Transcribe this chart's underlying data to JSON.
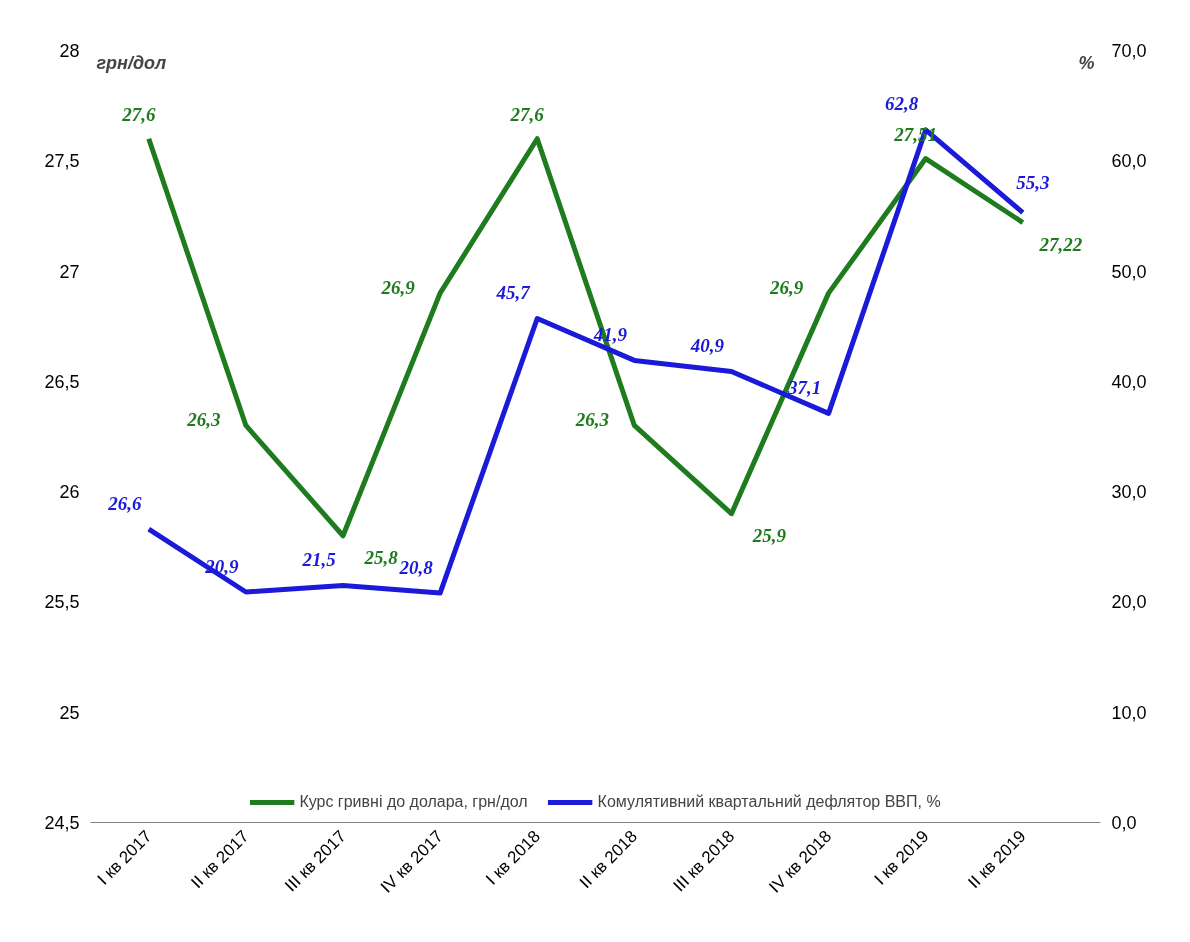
{
  "chart_data": {
    "type": "line",
    "ylabel": "грн/дол",
    "y2label": "%",
    "categories": [
      "I кв 2017",
      "II кв 2017",
      "III кв 2017",
      "IV кв 2017",
      "I кв 2018",
      "II кв 2018",
      "III кв 2018",
      "IV кв 2018",
      "I кв 2019",
      "II кв 2019"
    ],
    "series": [
      {
        "name": "Курс гривні до долара, грн/дол",
        "color": "#1e7b1e",
        "values": [
          27.6,
          26.3,
          25.8,
          26.9,
          27.6,
          26.3,
          25.9,
          26.9,
          27.51,
          27.22
        ],
        "value_labels": [
          "27,6",
          "26,3",
          "25,8",
          "26,9",
          "27,6",
          "26,3",
          "25,9",
          "26,9",
          "27,51",
          "27,22"
        ]
      },
      {
        "name": "Комулятивний квартальний дефлятор ВВП, %",
        "color": "#1a1ad8",
        "axis": "y2",
        "values": [
          26.6,
          20.9,
          21.5,
          20.8,
          45.7,
          41.9,
          40.9,
          37.1,
          62.8,
          55.3
        ],
        "value_labels": [
          "26,6",
          "20,9",
          "21,5",
          "20,8",
          "45,7",
          "41,9",
          "40,9",
          "37,1",
          "62,8",
          "55,3"
        ]
      }
    ],
    "ylim": [
      24.5,
      28
    ],
    "yticks": [
      {
        "value": 24.5,
        "label": "24,5"
      },
      25,
      {
        "value": 25.5,
        "label": "25,5"
      },
      26,
      {
        "value": 26.5,
        "label": "26,5"
      },
      27,
      {
        "value": 27.5,
        "label": "27,5"
      },
      28
    ],
    "y2lim": [
      0,
      70
    ],
    "y2ticks": [
      {
        "value": 0,
        "label": "0,0"
      },
      {
        "value": 10,
        "label": "10,0"
      },
      {
        "value": 20,
        "label": "20,0"
      },
      {
        "value": 30,
        "label": "30,0"
      },
      {
        "value": 40,
        "label": "40,0"
      },
      {
        "value": 50,
        "label": "50,0"
      },
      {
        "value": 60,
        "label": "60,0"
      },
      {
        "value": 70,
        "label": "70,0"
      }
    ],
    "grid": false,
    "legend": "bottom",
    "marker": "none",
    "line_style": "solid"
  }
}
